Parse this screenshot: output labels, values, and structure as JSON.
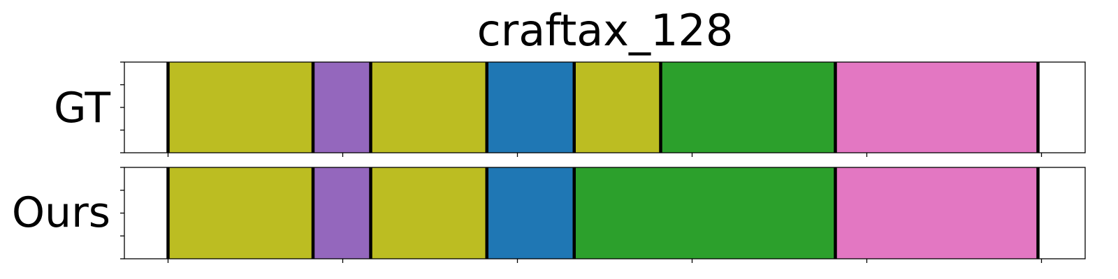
{
  "chart_data": {
    "type": "bar",
    "title": "craftax_128",
    "xlabel": "",
    "ylabel": "",
    "xlim": [
      0,
      1100
    ],
    "x_ticks": [
      50,
      250,
      450,
      650,
      850,
      1050
    ],
    "tick_labels_shown": false,
    "rows": [
      {
        "name": "GT",
        "segments": [
          {
            "start": 50,
            "end": 216,
            "color": "#bcbd22"
          },
          {
            "start": 216,
            "end": 282,
            "color": "#9467bd"
          },
          {
            "start": 282,
            "end": 415,
            "color": "#bcbd22"
          },
          {
            "start": 415,
            "end": 515,
            "color": "#1f77b4"
          },
          {
            "start": 515,
            "end": 614,
            "color": "#bcbd22"
          },
          {
            "start": 614,
            "end": 814,
            "color": "#2ca02c"
          },
          {
            "start": 814,
            "end": 1046,
            "color": "#e377c2"
          }
        ]
      },
      {
        "name": "Ours",
        "segments": [
          {
            "start": 50,
            "end": 216,
            "color": "#bcbd22"
          },
          {
            "start": 216,
            "end": 282,
            "color": "#9467bd"
          },
          {
            "start": 282,
            "end": 415,
            "color": "#bcbd22"
          },
          {
            "start": 415,
            "end": 515,
            "color": "#1f77b4"
          },
          {
            "start": 515,
            "end": 814,
            "color": "#2ca02c"
          },
          {
            "start": 814,
            "end": 1046,
            "color": "#e377c2"
          }
        ]
      }
    ],
    "boundary_color": "#000000",
    "grid": false
  }
}
